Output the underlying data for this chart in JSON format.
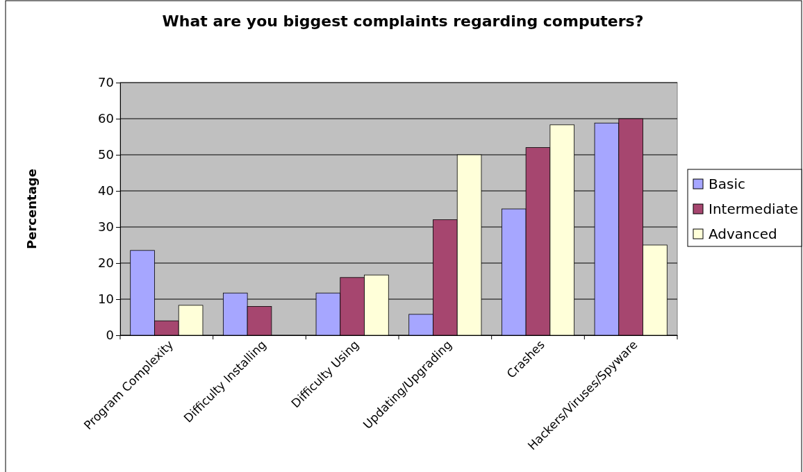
{
  "chart_data": {
    "type": "bar",
    "title": "What are you biggest complaints regarding computers?",
    "ylabel": "Percentage",
    "categories": [
      "Program Complexity",
      "Difficulty Installing",
      "Difficulty Using",
      "Updating/Upgrading",
      "Crashes",
      "Hackers/Viruses/Spyware"
    ],
    "series": [
      {
        "name": "Basic",
        "color": "#a6a6ff",
        "values": [
          23.5,
          11.7,
          11.7,
          5.8,
          35,
          58.8
        ]
      },
      {
        "name": "Intermediate",
        "color": "#a6466f",
        "values": [
          4,
          8,
          16,
          32,
          52,
          60
        ]
      },
      {
        "name": "Advanced",
        "color": "#ffffd9",
        "values": [
          8.3,
          0,
          16.7,
          50,
          58.3,
          25
        ]
      }
    ],
    "ylim": [
      0,
      70
    ],
    "yticks": [
      0,
      10,
      20,
      30,
      40,
      50,
      60,
      70
    ],
    "grid": "y",
    "legend": "right"
  }
}
